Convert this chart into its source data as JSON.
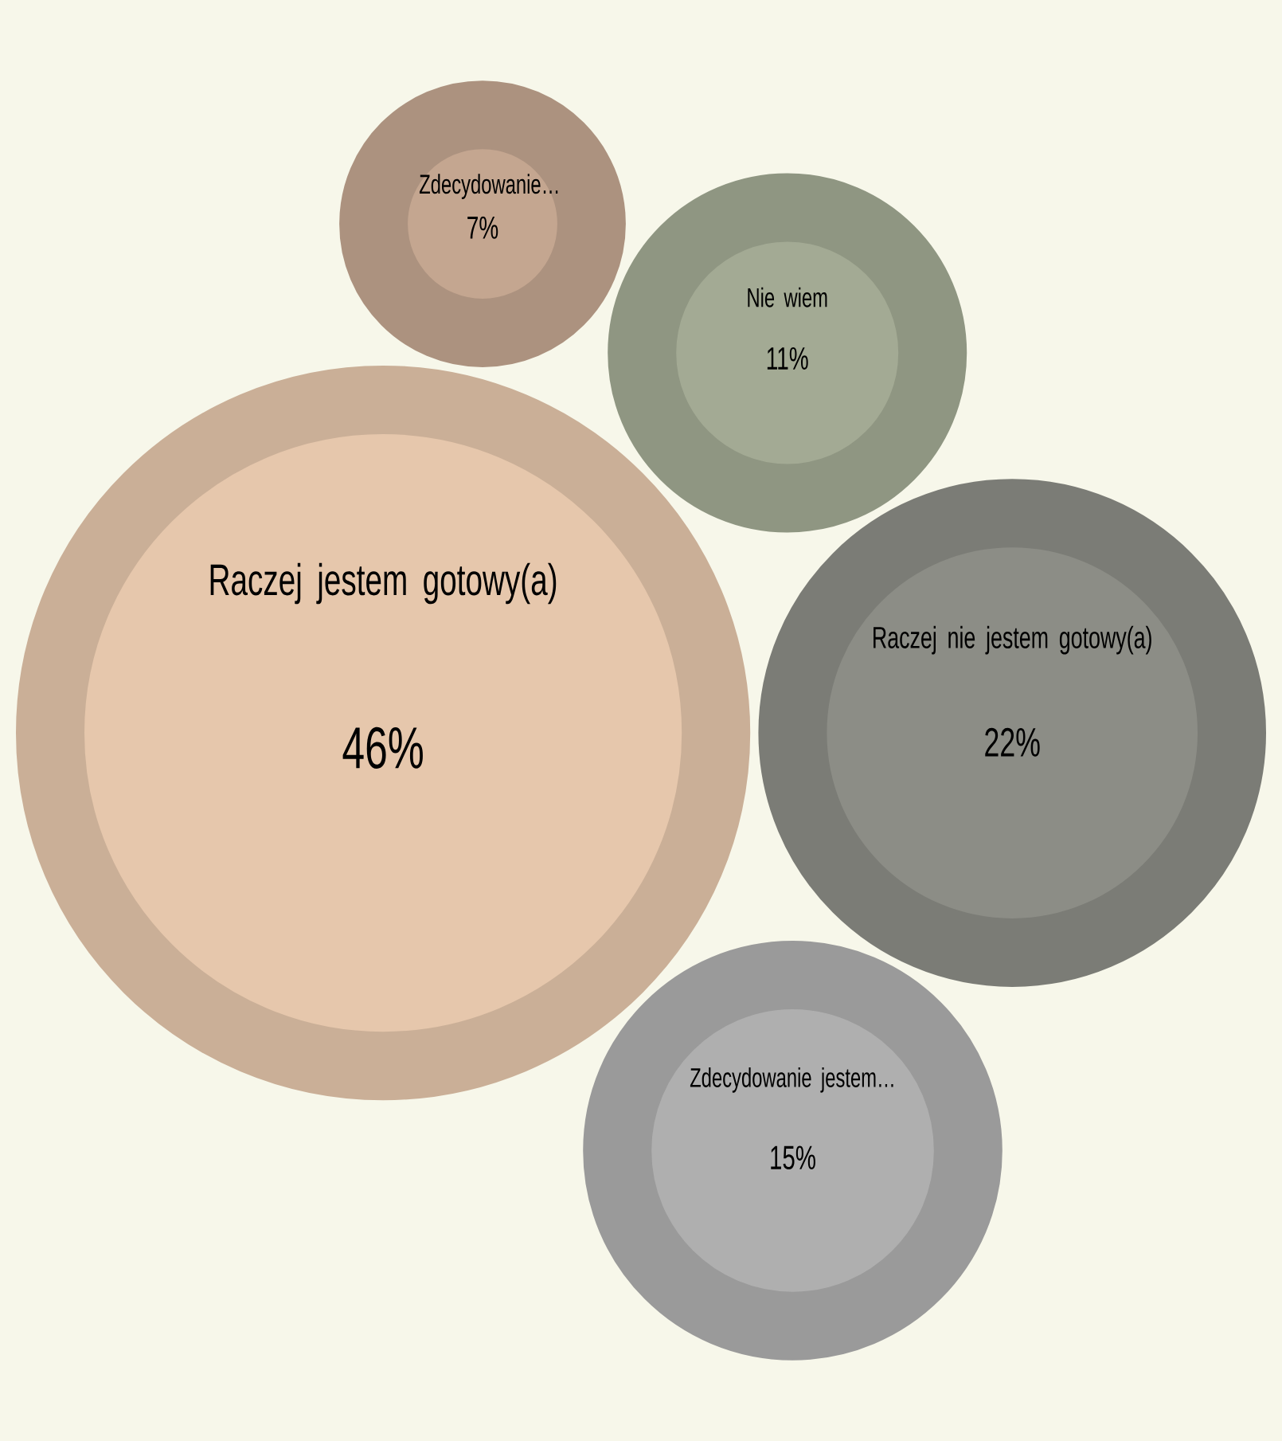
{
  "chart_data": {
    "type": "other",
    "categories": [
      "Zdecydowanie…",
      "Nie wiem",
      "Raczej jestem gotowy(a)",
      "Raczej nie jestem gotowy(a)",
      "Zdecydowanie jestem…"
    ],
    "values": [
      7,
      11,
      46,
      22,
      15
    ],
    "value_labels": [
      "7%",
      "11%",
      "46%",
      "22%",
      "15%"
    ],
    "colors": [
      "#c4a690",
      "#a3aa94",
      "#e6c7ac",
      "#8c8d86",
      "#afafaf"
    ]
  }
}
